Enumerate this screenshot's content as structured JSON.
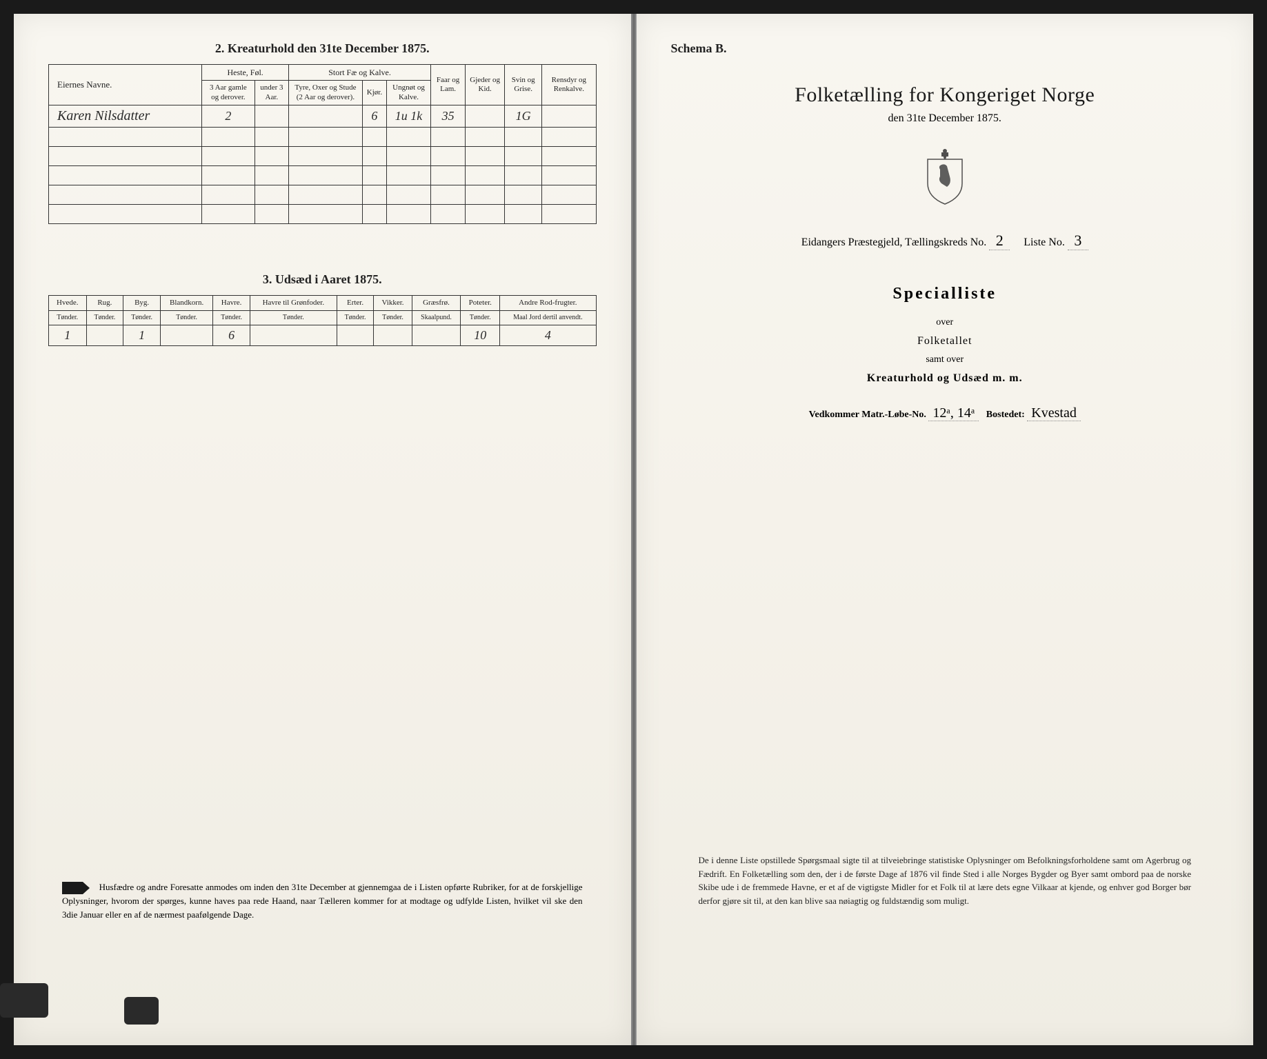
{
  "left": {
    "section2": {
      "title": "2. Kreaturhold den 31te December 1875.",
      "owner_header": "Eiernes Navne.",
      "groups": {
        "heste": "Heste, Føl.",
        "stort": "Stort Fæ og Kalve.",
        "faar": "Faar og Lam.",
        "gjeder": "Gjeder og Kid.",
        "svin": "Svin og Grise.",
        "rens": "Rensdyr og Renkalve."
      },
      "sub": {
        "heste_a": "3 Aar gamle og derover.",
        "heste_b": "under 3 Aar.",
        "stort_a": "Tyre, Oxer og Stude (2 Aar og derover).",
        "stort_b": "Kjør.",
        "stort_c": "Ungnøt og Kalve."
      },
      "rows": [
        {
          "owner": "Karen Nilsdatter",
          "heste_a": "2",
          "heste_b": "",
          "stort_a": "",
          "stort_b": "6",
          "stort_c": "1u 1k",
          "faar": "35",
          "gjeder": "",
          "svin": "1G",
          "rens": ""
        }
      ]
    },
    "section3": {
      "title": "3. Udsæd i Aaret 1875.",
      "cols": [
        "Hvede.",
        "Rug.",
        "Byg.",
        "Blandkorn.",
        "Havre.",
        "Havre til Grønfoder.",
        "Erter.",
        "Vikker.",
        "Græsfrø.",
        "Poteter.",
        "Andre Rod-frugter."
      ],
      "units": [
        "Tønder.",
        "Tønder.",
        "Tønder.",
        "Tønder.",
        "Tønder.",
        "Tønder.",
        "Tønder.",
        "Tønder.",
        "Skaalpund.",
        "Tønder.",
        "Maal Jord dertil anvendt."
      ],
      "row": [
        "1",
        "",
        "1",
        "",
        "6",
        "",
        "",
        "",
        "",
        "10",
        "4"
      ]
    },
    "footer": "Husfædre og andre Foresatte anmodes om inden den 31te December at gjennemgaa de i Listen opførte Rubriker, for at de forskjellige Oplysninger, hvorom der spørges, kunne haves paa rede Haand, naar Tælleren kommer for at modtage og udfylde Listen, hvilket vil ske den 3die Januar eller en af de nærmest paafølgende Dage."
  },
  "right": {
    "schema": "Schema B.",
    "title": "Folketælling for Kongeriget Norge",
    "date": "den 31te December 1875.",
    "district": {
      "prefix": "Eidangers Præstegjeld, Tællingskreds No.",
      "kreds": "2",
      "liste_label": "Liste No.",
      "liste": "3"
    },
    "special": "Specialliste",
    "over": "over",
    "folketallet": "Folketallet",
    "samt": "samt over",
    "kreatur": "Kreaturhold og Udsæd m. m.",
    "matr": {
      "label1": "Vedkommer Matr.-Løbe-No.",
      "val1": "12ᵃ, 14ᵃ",
      "label2": "Bostedet:",
      "val2": "Kvestad"
    },
    "footer": "De i denne Liste opstillede Spørgsmaal sigte til at tilveiebringe statistiske Oplysninger om Befolkningsforholdene samt om Agerbrug og Fædrift. En Folketælling som den, der i de første Dage af 1876 vil finde Sted i alle Norges Bygder og Byer samt ombord paa de norske Skibe ude i de fremmede Havne, er et af de vigtigste Midler for et Folk til at lære dets egne Vilkaar at kjende, og enhver god Borger bør derfor gjøre sit til, at den kan blive saa nøiagtig og fuldstændig som muligt."
  }
}
